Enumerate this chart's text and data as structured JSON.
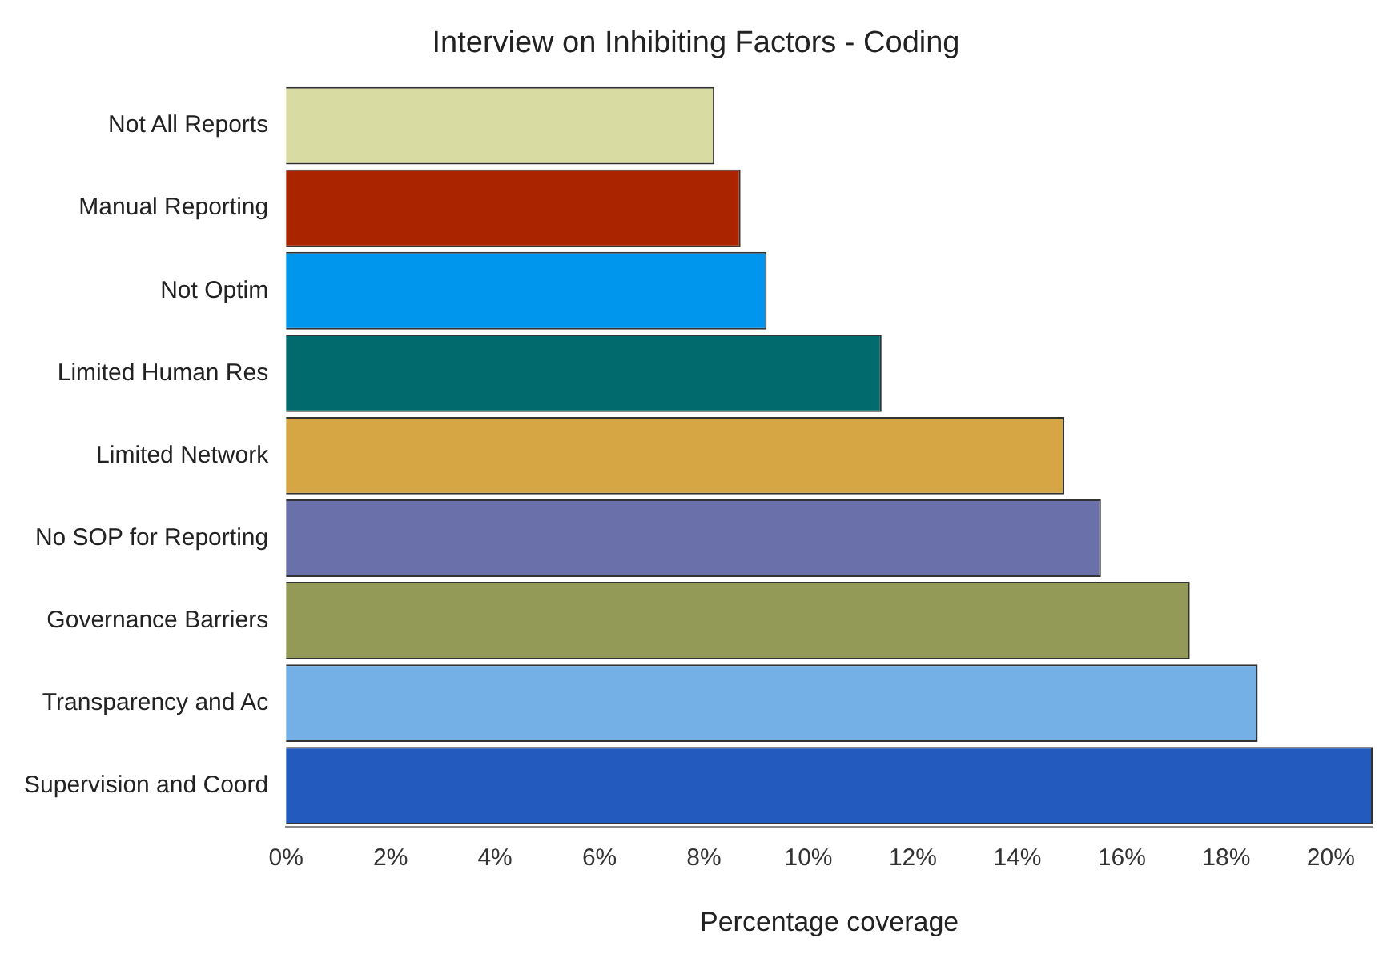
{
  "chart_data": {
    "type": "bar",
    "orientation": "horizontal",
    "title": "Interview on Inhibiting Factors - Coding",
    "xlabel": "Percentage coverage",
    "categories": [
      "Not All Reports",
      "Manual Reporting",
      "Not Optim",
      "Limited Human Res",
      "Limited Network",
      "No SOP for Reporting",
      "Governance Barriers",
      "Transparency and Ac",
      "Supervision and Coord"
    ],
    "values": [
      8.2,
      8.7,
      9.2,
      11.4,
      14.9,
      15.6,
      17.3,
      18.6,
      20.8
    ],
    "colors": [
      "#d8dca2",
      "#ab2400",
      "#0096ee",
      "#006a6c",
      "#d5a643",
      "#6a71aa",
      "#939956",
      "#74b0e6",
      "#225bbd"
    ],
    "xlim": [
      0,
      20.8
    ],
    "xticks": [
      {
        "value": 0,
        "label": "0%"
      },
      {
        "value": 2,
        "label": "2%"
      },
      {
        "value": 4,
        "label": "4%"
      },
      {
        "value": 6,
        "label": "6%"
      },
      {
        "value": 8,
        "label": "8%"
      },
      {
        "value": 10,
        "label": "10%"
      },
      {
        "value": 12,
        "label": "12%"
      },
      {
        "value": 14,
        "label": "14%"
      },
      {
        "value": 16,
        "label": "16%"
      },
      {
        "value": 18,
        "label": "18%"
      },
      {
        "value": 20,
        "label": "20%"
      }
    ],
    "grid": false,
    "legend": false
  }
}
